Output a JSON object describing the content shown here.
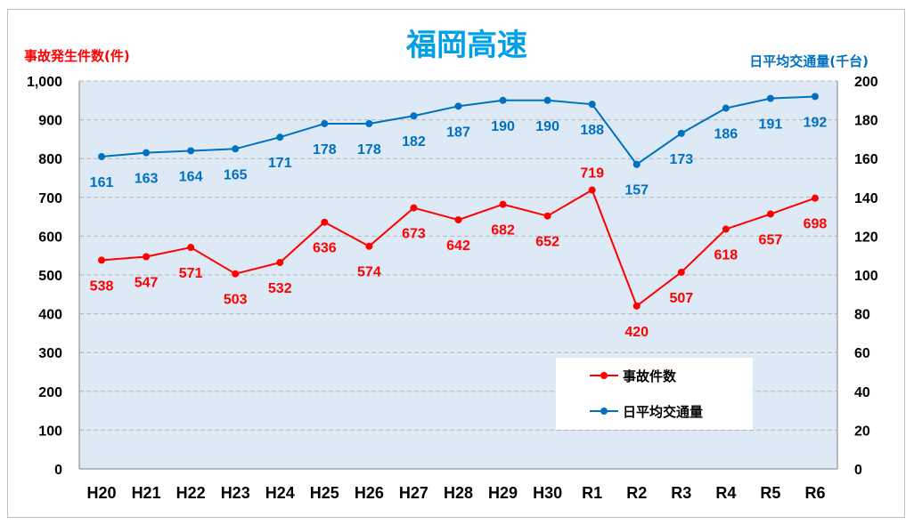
{
  "chart_data": {
    "type": "line",
    "title": "福岡高速",
    "categories": [
      "H20",
      "H21",
      "H22",
      "H23",
      "H24",
      "H25",
      "H26",
      "H27",
      "H28",
      "H29",
      "H30",
      "R1",
      "R2",
      "R3",
      "R4",
      "R5",
      "R6"
    ],
    "y_left": {
      "label": "事故発生件数(件)",
      "range": [
        0,
        1000
      ],
      "ticks": [
        "0",
        "100",
        "200",
        "300",
        "400",
        "500",
        "600",
        "700",
        "800",
        "900",
        "1,000"
      ],
      "tick_values": [
        0,
        100,
        200,
        300,
        400,
        500,
        600,
        700,
        800,
        900,
        1000
      ]
    },
    "y_right": {
      "label": "日平均交通量(千台)",
      "range": [
        0,
        200
      ],
      "ticks": [
        "0",
        "20",
        "40",
        "60",
        "80",
        "100",
        "120",
        "140",
        "160",
        "180",
        "200"
      ],
      "tick_values": [
        0,
        20,
        40,
        60,
        80,
        100,
        120,
        140,
        160,
        180,
        200
      ]
    },
    "series": [
      {
        "name": "事故件数",
        "axis": "left",
        "color": "#ff0000",
        "values": [
          538,
          547,
          571,
          503,
          532,
          636,
          574,
          673,
          642,
          682,
          652,
          719,
          420,
          507,
          618,
          657,
          698
        ],
        "label_pos": [
          "below",
          "below",
          "below",
          "below",
          "below",
          "below",
          "below",
          "below",
          "below",
          "below",
          "below",
          "above",
          "below",
          "below",
          "below",
          "below",
          "below"
        ]
      },
      {
        "name": "日平均交通量",
        "axis": "right",
        "color": "#0070c0",
        "values": [
          161,
          163,
          164,
          165,
          171,
          178,
          178,
          182,
          187,
          190,
          190,
          188,
          157,
          173,
          186,
          191,
          192
        ],
        "label_pos": [
          "below",
          "below",
          "below",
          "below",
          "below",
          "below",
          "below",
          "below",
          "below",
          "below",
          "below",
          "below",
          "below",
          "below",
          "below",
          "below",
          "below"
        ]
      }
    ],
    "grid": true,
    "legend_position": "bottom-right inside",
    "plot_background": "#dde9f5"
  }
}
